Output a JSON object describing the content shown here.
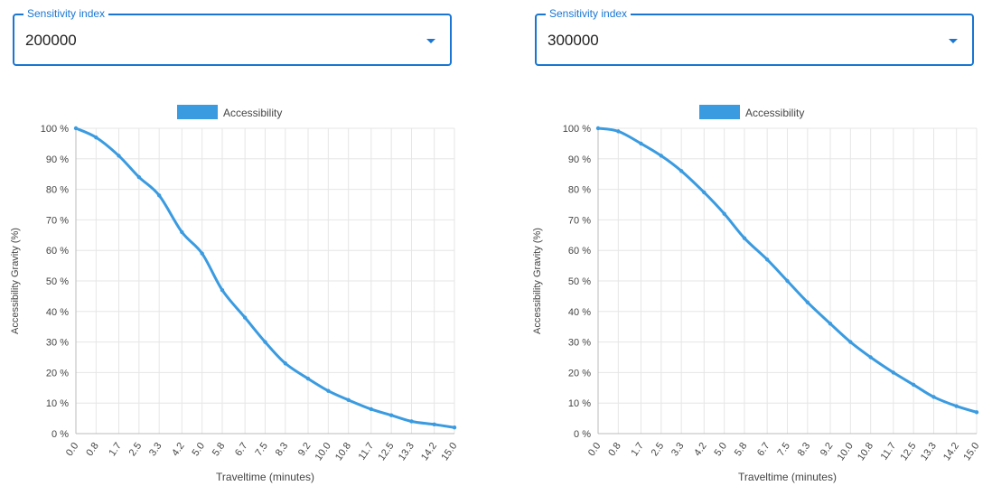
{
  "colors": {
    "accent": "#1976d2",
    "series": "#3a9be0",
    "grid": "#e6e6e6"
  },
  "panels": [
    {
      "select": {
        "legend": "Sensitivity index",
        "value": "200000"
      },
      "chart_data": {
        "type": "line",
        "legend": "Accessibility",
        "xlabel": "Traveltime (minutes)",
        "ylabel": "Accessibility Gravity (%)",
        "xlim": [
          0,
          15
        ],
        "ylim": [
          0,
          100
        ],
        "xticks": [
          "0.0",
          "0.8",
          "1.7",
          "2.5",
          "3.3",
          "4.2",
          "5.0",
          "5.8",
          "6.7",
          "7.5",
          "8.3",
          "9.2",
          "10.0",
          "10.8",
          "11.7",
          "12.5",
          "13.3",
          "14.2",
          "15.0"
        ],
        "yticks": [
          "0 %",
          "10 %",
          "20 %",
          "30 %",
          "40 %",
          "50 %",
          "60 %",
          "70 %",
          "80 %",
          "90 %",
          "100 %"
        ],
        "grid": true,
        "x": [
          0.0,
          0.8,
          1.7,
          2.5,
          3.3,
          4.2,
          5.0,
          5.8,
          6.7,
          7.5,
          8.3,
          9.2,
          10.0,
          10.8,
          11.7,
          12.5,
          13.3,
          14.2,
          15.0
        ],
        "y": [
          100,
          97,
          91,
          84,
          78,
          66,
          59,
          47,
          38,
          30,
          23,
          18,
          14,
          11,
          8,
          6,
          4,
          3,
          2
        ]
      }
    },
    {
      "select": {
        "legend": "Sensitivity index",
        "value": "300000"
      },
      "chart_data": {
        "type": "line",
        "legend": "Accessibility",
        "xlabel": "Traveltime (minutes)",
        "ylabel": "Accessibility Gravity (%)",
        "xlim": [
          0,
          15
        ],
        "ylim": [
          0,
          100
        ],
        "xticks": [
          "0.0",
          "0.8",
          "1.7",
          "2.5",
          "3.3",
          "4.2",
          "5.0",
          "5.8",
          "6.7",
          "7.5",
          "8.3",
          "9.2",
          "10.0",
          "10.8",
          "11.7",
          "12.5",
          "13.3",
          "14.2",
          "15.0"
        ],
        "yticks": [
          "0 %",
          "10 %",
          "20 %",
          "30 %",
          "40 %",
          "50 %",
          "60 %",
          "70 %",
          "80 %",
          "90 %",
          "100 %"
        ],
        "grid": true,
        "x": [
          0.0,
          0.8,
          1.7,
          2.5,
          3.3,
          4.2,
          5.0,
          5.8,
          6.7,
          7.5,
          8.3,
          9.2,
          10.0,
          10.8,
          11.7,
          12.5,
          13.3,
          14.2,
          15.0
        ],
        "y": [
          100,
          99,
          95,
          91,
          86,
          79,
          72,
          64,
          57,
          50,
          43,
          36,
          30,
          25,
          20,
          16,
          12,
          9,
          7
        ]
      }
    }
  ]
}
